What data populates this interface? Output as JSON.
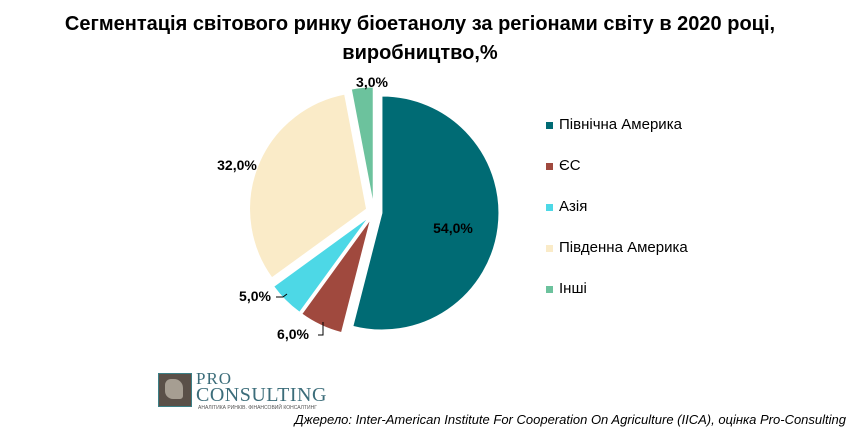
{
  "chart_data": {
    "type": "pie",
    "title": "Сегментація світового ринку біоетанолу за регіонами світу в 2020 році, виробництво,%",
    "categories": [
      "Північна Америка",
      "ЄС",
      "Азія",
      "Південна Америка",
      "Інші"
    ],
    "values": [
      54.0,
      6.0,
      5.0,
      32.0,
      3.0
    ],
    "data_labels": [
      "54,0%",
      "6,0%",
      "5,0%",
      "32,0%",
      "3,0%"
    ],
    "colors": [
      "#006B74",
      "#A0493E",
      "#4DD8E6",
      "#FAEBC8",
      "#6CC29D"
    ],
    "exploded": true,
    "start_angle": "12 o'clock, clockwise",
    "legend_position": "right"
  },
  "logo": {
    "top": "PRO",
    "bottom": "CONSULTING",
    "tagline": "АНАЛІТИКА РИНКІВ. ФІНАНСОВИЙ КОНСАЛТИНГ"
  },
  "source": "Джерело: Inter-American Institute For Cooperation On Agriculture (IICA), оцінка Pro-Consulting"
}
